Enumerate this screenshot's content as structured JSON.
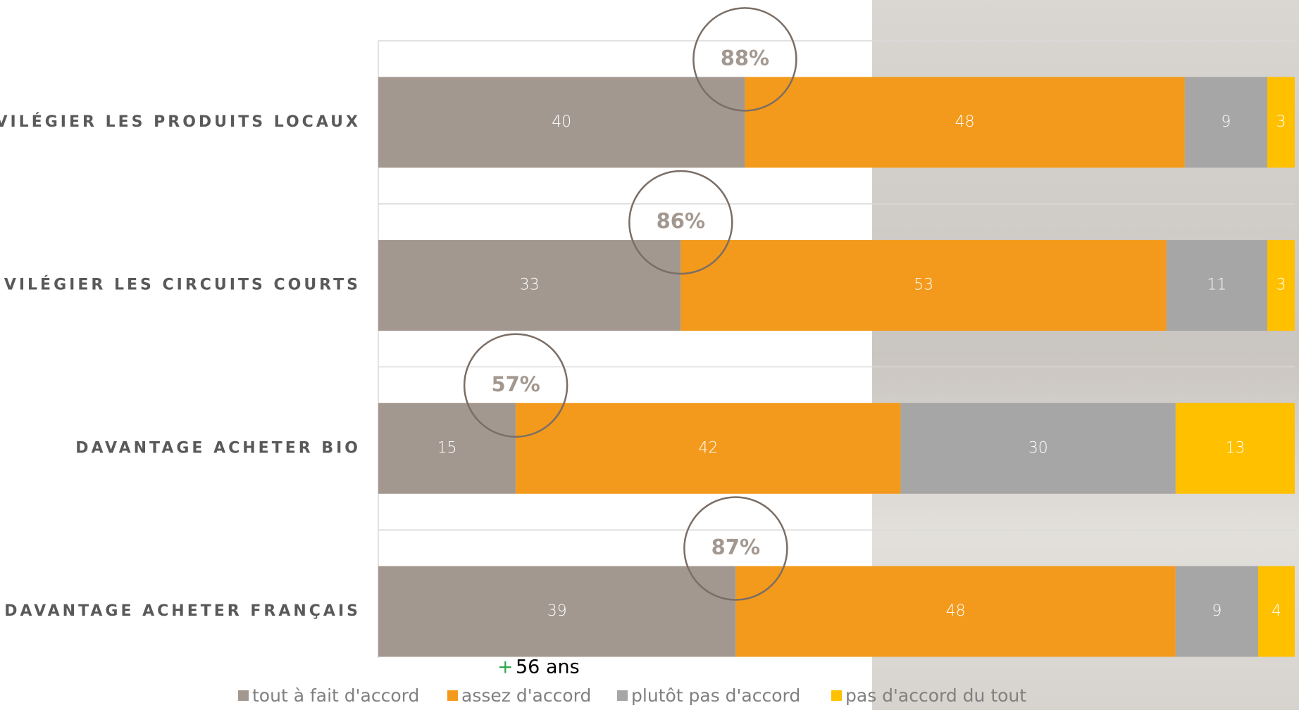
{
  "chart_data": {
    "type": "stacked-barh",
    "categories": [
      "PRIVILÉGIER LES PRODUITS LOCAUX",
      "PRIVILÉGIER LES CIRCUITS COURTS",
      "DAVANTAGE ACHETER BIO",
      "DAVANTAGE ACHETER FRANÇAIS"
    ],
    "series": [
      {
        "name": "tout à fait d'accord",
        "color": "#a39890",
        "values": [
          40,
          33,
          15,
          39
        ]
      },
      {
        "name": "assez d'accord",
        "color": "#f39a1c",
        "values": [
          48,
          53,
          42,
          48
        ]
      },
      {
        "name": "plutôt pas d'accord",
        "color": "#a6a6a6",
        "values": [
          9,
          11,
          30,
          9
        ]
      },
      {
        "name": "pas d'accord du tout",
        "color": "#ffc000",
        "values": [
          3,
          3,
          13,
          4
        ]
      }
    ],
    "xlim": [
      0,
      100
    ],
    "agree_totals": {
      "values": [
        88,
        86,
        57,
        87
      ],
      "value_labels": [
        "88%",
        "86%",
        "57%",
        "87%"
      ]
    },
    "note": {
      "symbol": "+",
      "text": "56 ans"
    },
    "legend": "bottom"
  }
}
